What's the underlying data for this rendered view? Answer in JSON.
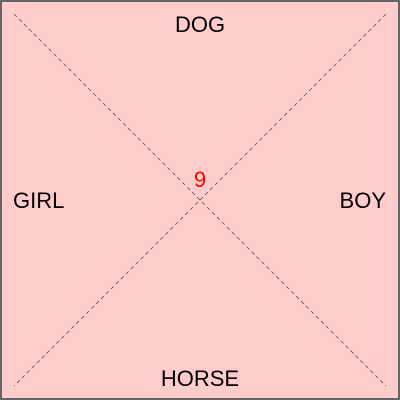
{
  "labels": {
    "top": "DOG",
    "bottom": "HORSE",
    "left": "GIRL",
    "right": "BOY"
  },
  "center_value": "9",
  "colors": {
    "background": "#ffcccc",
    "border": "#666666",
    "diagonal": "#555555",
    "label_text": "#000000",
    "center_value": "#ff0000"
  }
}
